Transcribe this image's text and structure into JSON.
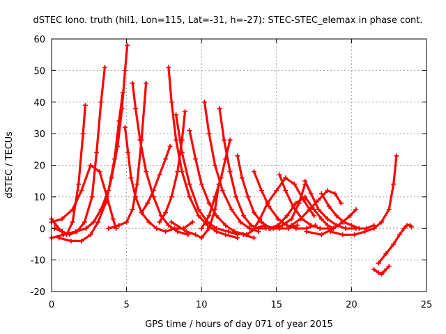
{
  "chart_data": {
    "type": "scatter",
    "title": "dSTEC Iono. truth (hil1, Lon=115, Lat=-31, h=-27): STEC-STEC_elemax in phase cont.",
    "xlabel": "GPS time / hours of day 071 of year 2015",
    "ylabel": "dSTEC  / TECUs",
    "xlim": [
      0,
      25
    ],
    "ylim": [
      -20,
      60
    ],
    "xticks": [
      0,
      5,
      10,
      15,
      20,
      25
    ],
    "yticks": [
      -20,
      -10,
      0,
      10,
      20,
      30,
      40,
      50,
      60
    ],
    "grid": true,
    "legend": "none",
    "marker": "plus",
    "color": "#ff0000",
    "series": [
      {
        "x": [
          0.0,
          0.3,
          0.7,
          1.0,
          1.4,
          1.8,
          2.1,
          2.25
        ],
        "y": [
          3,
          1,
          -1,
          -2,
          2,
          14,
          30,
          39
        ]
      },
      {
        "x": [
          0.2,
          0.7,
          1.2,
          1.7,
          2.2,
          2.7,
          3.0,
          3.3,
          3.55
        ],
        "y": [
          0,
          -1,
          -2,
          -1,
          2,
          10,
          24,
          40,
          51
        ]
      },
      {
        "x": [
          0.0,
          0.7,
          1.4,
          2.0,
          2.6,
          3.2,
          3.7,
          4.1,
          4.3
        ],
        "y": [
          2,
          3,
          6,
          12,
          20,
          18,
          10,
          3,
          0
        ]
      },
      {
        "x": [
          0.5,
          1.3,
          2.0,
          2.6,
          3.1,
          3.6,
          4.0,
          4.4,
          4.7,
          4.9,
          5.05
        ],
        "y": [
          -3,
          -4,
          -4,
          -2,
          2,
          8,
          16,
          26,
          38,
          50,
          58
        ]
      },
      {
        "x": [
          0.0,
          0.8,
          1.6,
          2.3,
          2.8,
          3.3,
          3.8,
          4.2,
          4.5,
          4.75
        ],
        "y": [
          -3,
          -2,
          -1,
          0,
          2,
          6,
          12,
          22,
          34,
          43
        ]
      },
      {
        "x": [
          4.9,
          5.1,
          5.3,
          5.6,
          6.0,
          6.5,
          7.0,
          7.6,
          8.2,
          8.8,
          9.4
        ],
        "y": [
          32,
          24,
          16,
          10,
          5,
          2,
          0,
          -1,
          0,
          0,
          2
        ]
      },
      {
        "x": [
          3.8,
          4.5,
          5.0,
          5.4,
          5.7,
          6.0,
          6.3
        ],
        "y": [
          0,
          1,
          2,
          6,
          14,
          28,
          46
        ]
      },
      {
        "x": [
          5.4,
          5.6,
          5.9,
          6.3,
          6.8,
          7.3,
          7.8,
          8.4,
          9.1
        ],
        "y": [
          46,
          38,
          28,
          18,
          10,
          4,
          1,
          -1,
          -2
        ]
      },
      {
        "x": [
          6.0,
          6.4,
          6.8,
          7.2,
          7.6,
          7.9
        ],
        "y": [
          5,
          8,
          12,
          17,
          22,
          26
        ]
      },
      {
        "x": [
          7.8,
          8.0,
          8.3,
          8.7,
          9.2,
          9.8,
          10.4,
          11.0,
          11.6,
          12.4
        ],
        "y": [
          51,
          40,
          28,
          18,
          10,
          4,
          1,
          -1,
          -2,
          -3
        ]
      },
      {
        "x": [
          7.2,
          7.6,
          8.0,
          8.4,
          8.7,
          8.9
        ],
        "y": [
          2,
          5,
          10,
          18,
          28,
          37
        ]
      },
      {
        "x": [
          8.3,
          8.7,
          9.2,
          9.8,
          10.4,
          11.0,
          11.8,
          12.4
        ],
        "y": [
          36,
          24,
          14,
          6,
          2,
          0,
          -1,
          -2
        ]
      },
      {
        "x": [
          9.2,
          9.6,
          10.0,
          10.5,
          11.0,
          11.6,
          12.2,
          12.8,
          13.5
        ],
        "y": [
          31,
          22,
          14,
          8,
          4,
          1,
          -1,
          -2,
          -3
        ]
      },
      {
        "x": [
          8.0,
          9.0,
          9.6,
          10.0,
          10.5,
          10.9,
          11.15
        ],
        "y": [
          2,
          -1,
          -2,
          -3,
          0,
          6,
          14
        ]
      },
      {
        "x": [
          10.2,
          10.5,
          10.9,
          11.4,
          12.0,
          12.6,
          13.2,
          13.8
        ],
        "y": [
          40,
          30,
          20,
          12,
          6,
          2,
          0,
          -1
        ]
      },
      {
        "x": [
          11.2,
          11.5,
          11.9,
          12.3,
          12.8,
          13.3,
          13.8,
          14.3
        ],
        "y": [
          38,
          28,
          18,
          10,
          4,
          1,
          0,
          0
        ]
      },
      {
        "x": [
          10.0,
          10.5,
          10.9,
          11.3,
          11.6,
          11.9
        ],
        "y": [
          0,
          4,
          10,
          16,
          22,
          28
        ]
      },
      {
        "x": [
          12.4,
          12.7,
          13.1,
          13.5,
          14.0,
          14.6,
          15.2,
          15.8,
          16.4
        ],
        "y": [
          23,
          16,
          10,
          5,
          2,
          0,
          0,
          0,
          1
        ]
      },
      {
        "x": [
          12.2,
          13.0,
          13.6,
          14.2,
          14.8,
          15.4,
          16.0,
          16.5,
          16.9
        ],
        "y": [
          -1,
          -2,
          0,
          1,
          0,
          1,
          3,
          8,
          14
        ]
      },
      {
        "x": [
          13.5,
          13.9,
          14.4,
          15.0,
          15.6,
          16.2,
          16.8,
          17.5
        ],
        "y": [
          0,
          3,
          8,
          12,
          16,
          14,
          9,
          4
        ]
      },
      {
        "x": [
          13.5,
          14.0,
          14.5,
          15.1,
          15.7,
          16.3,
          17.0,
          17.6
        ],
        "y": [
          18,
          12,
          7,
          3,
          1,
          0,
          0,
          1
        ]
      },
      {
        "x": [
          15.2,
          15.6,
          16.1,
          16.7,
          17.3,
          17.9,
          18.6
        ],
        "y": [
          17,
          12,
          7,
          3,
          1,
          0,
          0
        ]
      },
      {
        "x": [
          14.5,
          15.1,
          15.7,
          16.3,
          16.9,
          17.5,
          18.0,
          18.4,
          18.8
        ],
        "y": [
          0,
          1,
          4,
          8,
          10,
          6,
          3,
          1,
          0
        ]
      },
      {
        "x": [
          16.9,
          17.3,
          17.8,
          18.4,
          19.0,
          19.6,
          20.3
        ],
        "y": [
          15,
          11,
          6,
          3,
          1,
          0,
          0
        ]
      },
      {
        "x": [
          16.0,
          16.6,
          17.2,
          17.8,
          18.4,
          18.9,
          19.3
        ],
        "y": [
          1,
          3,
          6,
          9,
          12,
          11,
          8
        ]
      },
      {
        "x": [
          18.0,
          18.5,
          19.0,
          19.5,
          20.0,
          20.5,
          21.0,
          21.5
        ],
        "y": [
          11,
          7,
          4,
          2,
          1,
          0,
          0,
          1
        ]
      },
      {
        "x": [
          17.0,
          18.0,
          18.8,
          19.4,
          19.9,
          20.3
        ],
        "y": [
          -1,
          -2,
          0,
          2,
          4,
          6
        ]
      },
      {
        "x": [
          18.6,
          19.4,
          20.2,
          20.9,
          21.5,
          22.0,
          22.5,
          22.8,
          23.0
        ],
        "y": [
          -1,
          -2,
          -2,
          -1,
          0,
          2,
          6,
          14,
          23
        ]
      },
      {
        "x": [
          21.5,
          21.8,
          22.0,
          22.2,
          22.5
        ],
        "y": [
          -13,
          -14,
          -14.5,
          -13.5,
          -12
        ]
      },
      {
        "x": [
          21.8,
          22.3,
          22.8,
          23.2,
          23.5,
          23.7,
          23.9,
          24.0
        ],
        "y": [
          -11,
          -8,
          -5,
          -2,
          0,
          1,
          1,
          0.5
        ]
      }
    ]
  }
}
